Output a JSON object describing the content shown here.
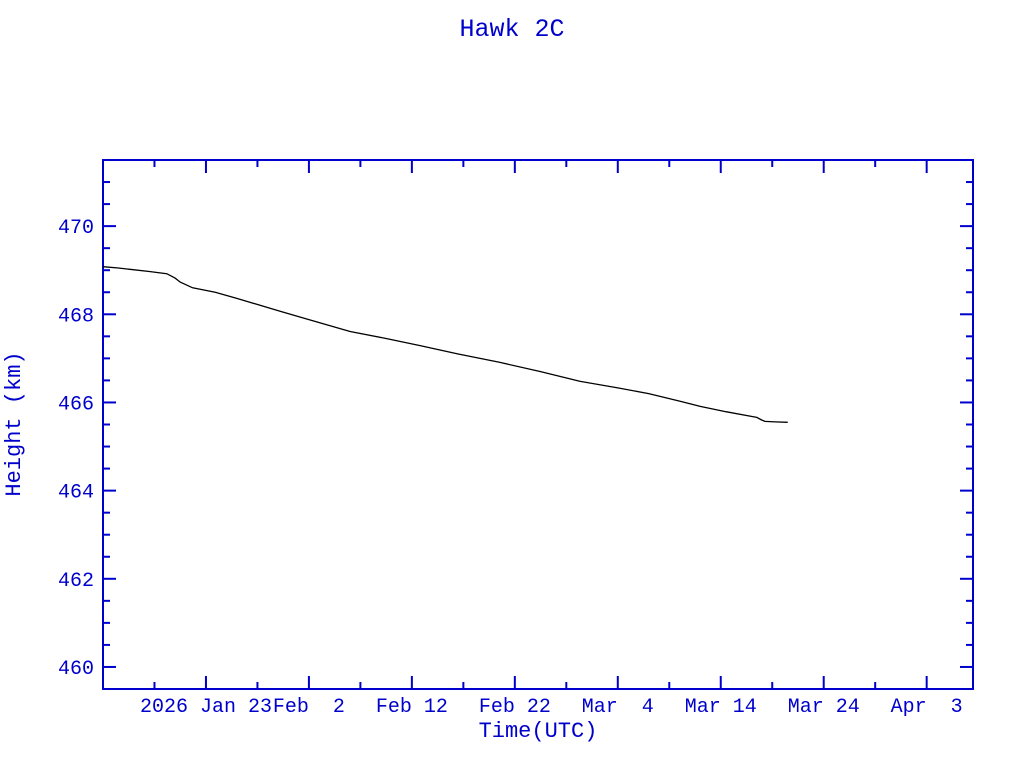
{
  "chart_data": {
    "type": "line",
    "title": "Hawk 2C",
    "xlabel": "Time(UTC)",
    "ylabel": "Height (km)",
    "background": "#ffffff",
    "axis_color": "#0000CC",
    "grid": false,
    "legend": false,
    "x_axis": {
      "unit": "days since 2026 Jan 13 (axis origin)",
      "range": [
        0,
        84.5
      ],
      "major_tick_interval_days": 10,
      "minor_tick_interval_days": 5,
      "major_ticks": [
        {
          "day": 10,
          "label": "2026 Jan 23"
        },
        {
          "day": 20,
          "label": "Feb  2"
        },
        {
          "day": 30,
          "label": "Feb 12"
        },
        {
          "day": 40,
          "label": "Feb 22"
        },
        {
          "day": 50,
          "label": "Mar  4"
        },
        {
          "day": 60,
          "label": "Mar 14"
        },
        {
          "day": 70,
          "label": "Mar 24"
        },
        {
          "day": 80,
          "label": "Apr  3"
        }
      ],
      "minor_tick_days": [
        5,
        15,
        25,
        35,
        45,
        55,
        65,
        75
      ]
    },
    "y_axis": {
      "range": [
        459.5,
        471.5
      ],
      "minor_step": 0.5,
      "major_ticks": [
        {
          "value": 470,
          "label": "470"
        },
        {
          "value": 468,
          "label": "468"
        },
        {
          "value": 466,
          "label": "466"
        },
        {
          "value": 464,
          "label": "464"
        },
        {
          "value": 462,
          "label": "462"
        },
        {
          "value": 460,
          "label": "460"
        }
      ]
    },
    "series": [
      {
        "name": "height",
        "color": "#000000",
        "points": [
          [
            0.0,
            469.08
          ],
          [
            1.5,
            469.05
          ],
          [
            2.6,
            469.02
          ],
          [
            4.5,
            468.97
          ],
          [
            6.2,
            468.92
          ],
          [
            7.0,
            468.82
          ],
          [
            7.5,
            468.73
          ],
          [
            8.7,
            468.6
          ],
          [
            10.9,
            468.5
          ],
          [
            13.0,
            468.36
          ],
          [
            17.2,
            468.07
          ],
          [
            20.0,
            467.88
          ],
          [
            24.0,
            467.61
          ],
          [
            27.5,
            467.45
          ],
          [
            30.8,
            467.29
          ],
          [
            34.5,
            467.1
          ],
          [
            38.5,
            466.91
          ],
          [
            42.5,
            466.7
          ],
          [
            46.3,
            466.48
          ],
          [
            50.0,
            466.33
          ],
          [
            53.0,
            466.2
          ],
          [
            56.0,
            466.03
          ],
          [
            58.0,
            465.91
          ],
          [
            60.5,
            465.79
          ],
          [
            63.1,
            465.68
          ],
          [
            63.5,
            465.66
          ],
          [
            64.0,
            465.6
          ],
          [
            64.3,
            465.57
          ],
          [
            65.3,
            465.56
          ],
          [
            66.5,
            465.55
          ]
        ]
      }
    ]
  }
}
